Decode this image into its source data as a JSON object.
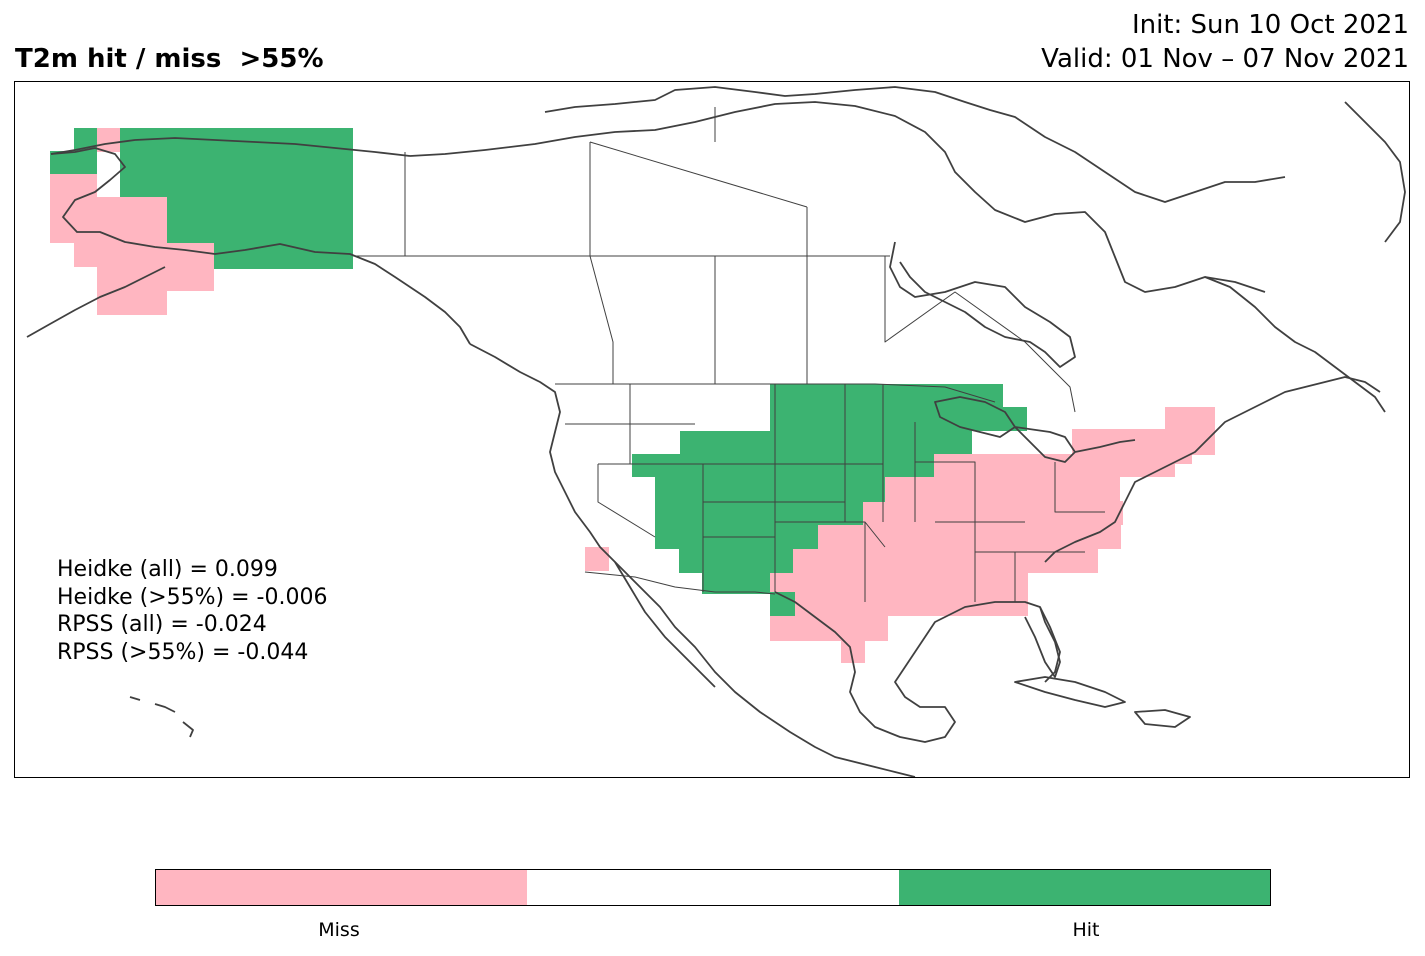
{
  "title": "T2m hit / miss  >55%",
  "init": "Init: Sun 10 Oct 2021",
  "valid": "Valid: 01 Nov – 07 Nov 2021",
  "stats": [
    "Heidke (all) = 0.099",
    "Heidke (>55%) = -0.006",
    "RPSS (all) = -0.024",
    "RPSS (>55%) = -0.044"
  ],
  "colorbar": {
    "colors": [
      "#ffb6c1",
      "#ffffff",
      "#3cb371"
    ],
    "labels": [
      "Miss",
      "Hit"
    ]
  },
  "colors": {
    "miss": "#ffb6c1",
    "hit": "#3cb371",
    "coast": "#404040"
  }
}
